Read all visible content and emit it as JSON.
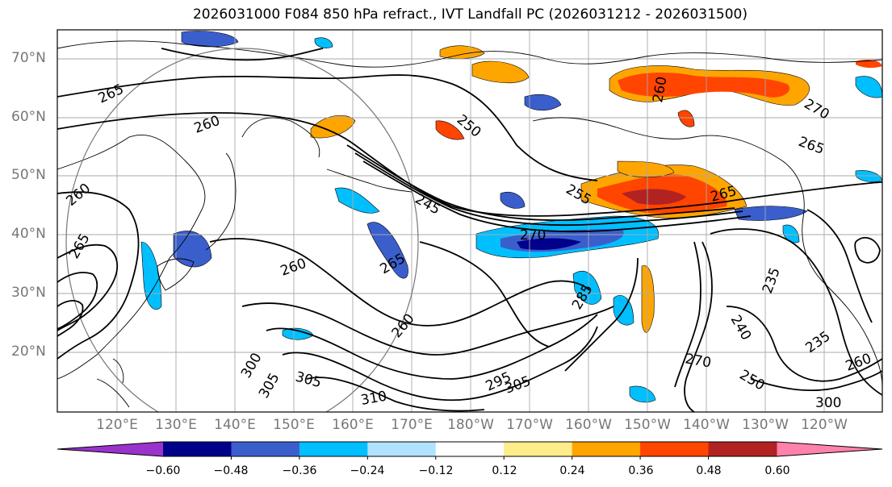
{
  "title": "2026031000 F084 850 hPa refract., IVT Landfall PC (2026031212 - 2026031500)",
  "map": {
    "lat_labels": [
      "70°N",
      "60°N",
      "50°N",
      "40°N",
      "30°N",
      "20°N"
    ],
    "lon_labels": [
      "120°E",
      "130°E",
      "140°E",
      "150°E",
      "160°E",
      "170°E",
      "180°W",
      "170°W",
      "160°W",
      "150°W",
      "140°W",
      "130°W",
      "120°W"
    ],
    "contour_labels": [
      "265",
      "260",
      "260",
      "265",
      "260",
      "265",
      "260",
      "250",
      "245",
      "255",
      "270",
      "260",
      "265",
      "265",
      "270",
      "285",
      "235",
      "240",
      "235",
      "270",
      "250",
      "260",
      "300",
      "295",
      "305",
      "305",
      "305",
      "310",
      "300"
    ]
  },
  "colorbar": {
    "ticks": [
      "−0.60",
      "−0.48",
      "−0.36",
      "−0.24",
      "−0.12",
      "0.12",
      "0.24",
      "0.36",
      "0.48",
      "0.60"
    ],
    "colors": [
      "#9933cc",
      "#00008b",
      "#3a5fcd",
      "#00bfff",
      "#b0e2ff",
      "#ffffff",
      "#ffec8b",
      "#ffa500",
      "#ff4500",
      "#b22222",
      "#ff82ab"
    ]
  }
}
